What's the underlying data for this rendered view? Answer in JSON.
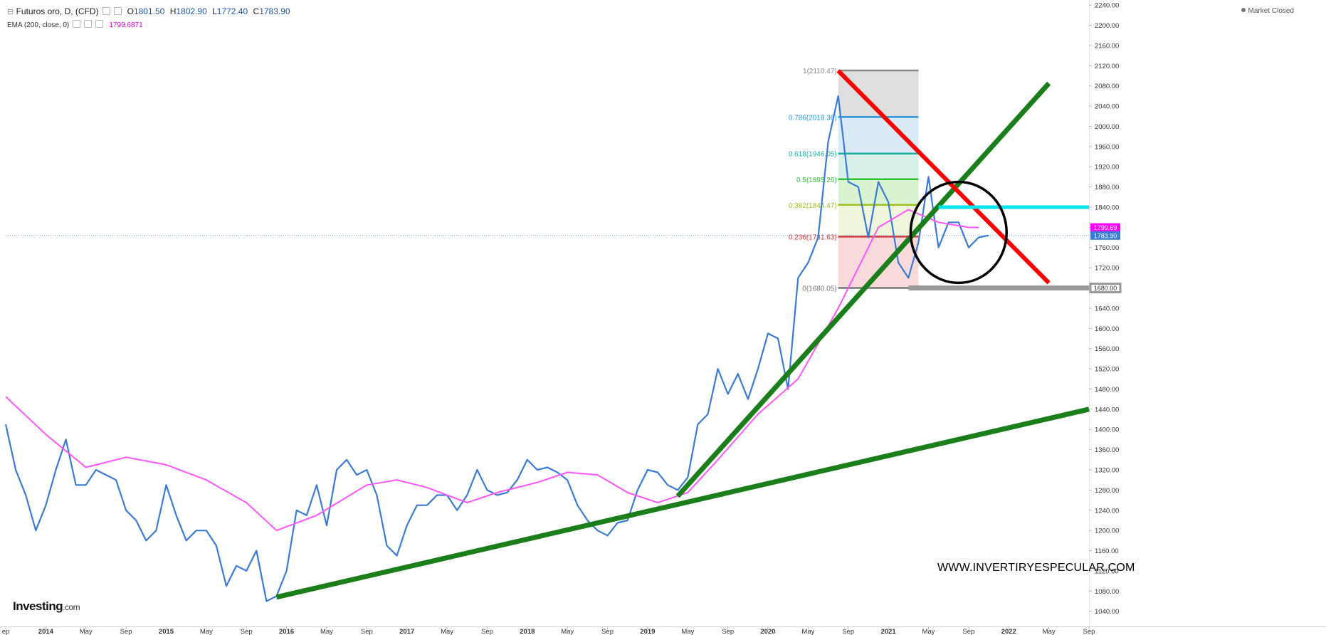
{
  "header": {
    "symbol_title": "Futuros oro, D, (CFD)",
    "open_label": "O",
    "open": "1801.50",
    "high_label": "H",
    "high": "1802.90",
    "low_label": "L",
    "low": "1772.40",
    "close_label": "C",
    "close": "1783.90",
    "indicator_label": "EMA (200, close, 0)",
    "indicator_value": "1799.6871"
  },
  "market_status": "Market Closed",
  "logo": {
    "name": "Investing",
    "suffix": ".com"
  },
  "watermark": "WWW.INVERTIRYESPECULAR.COM",
  "colors": {
    "price": "#3a7bd5",
    "ema": "#ff55ff",
    "trend_green": "#1a7f1a",
    "trend_red": "#ff0000",
    "resistance_cyan": "#00e5ee",
    "support_gray": "#999999",
    "circle": "#000000",
    "ema_badge": "#ff00ff",
    "price_badge": "#3a7bd5"
  },
  "chart_data": {
    "type": "line",
    "title": "Futuros oro, D, (CFD)",
    "x_range": [
      "2013-09",
      "2022-09"
    ],
    "ylim": [
      1010,
      2250
    ],
    "y_ticks": [
      1040,
      1080,
      1120,
      1160,
      1200,
      1240,
      1280,
      1320,
      1360,
      1400,
      1440,
      1480,
      1520,
      1560,
      1600,
      1640,
      1680,
      1720,
      1760,
      1800,
      1840,
      1880,
      1920,
      1960,
      2000,
      2040,
      2080,
      2120,
      2160,
      2200,
      2240
    ],
    "y_tick_labels": [
      "1040.00",
      "1080.00",
      "1120.00",
      "1160.00",
      "1200.00",
      "1240.00",
      "1280.00",
      "1320.00",
      "1360.00",
      "1400.00",
      "1440.00",
      "1480.00",
      "1520.00",
      "1560.00",
      "1600.00",
      "1640.00",
      "1680.00",
      "1720.00",
      "1760.00",
      "1800.00",
      "1840.00",
      "1880.00",
      "1920.00",
      "1960.00",
      "2000.00",
      "2040.00",
      "2080.00",
      "2120.00",
      "2160.00",
      "2200.00",
      "2240.00"
    ],
    "x_ticks": [
      {
        "date": "2013-09",
        "label": "ep"
      },
      {
        "date": "2014-01",
        "label": "2014"
      },
      {
        "date": "2014-05",
        "label": "May"
      },
      {
        "date": "2014-09",
        "label": "Sep"
      },
      {
        "date": "2015-01",
        "label": "2015"
      },
      {
        "date": "2015-05",
        "label": "May"
      },
      {
        "date": "2015-09",
        "label": "Sep"
      },
      {
        "date": "2016-01",
        "label": "2016"
      },
      {
        "date": "2016-05",
        "label": "May"
      },
      {
        "date": "2016-09",
        "label": "Sep"
      },
      {
        "date": "2017-01",
        "label": "2017"
      },
      {
        "date": "2017-05",
        "label": "May"
      },
      {
        "date": "2017-09",
        "label": "Sep"
      },
      {
        "date": "2018-01",
        "label": "2018"
      },
      {
        "date": "2018-05",
        "label": "May"
      },
      {
        "date": "2018-09",
        "label": "Sep"
      },
      {
        "date": "2019-01",
        "label": "2019"
      },
      {
        "date": "2019-05",
        "label": "May"
      },
      {
        "date": "2019-09",
        "label": "Sep"
      },
      {
        "date": "2020-01",
        "label": "2020"
      },
      {
        "date": "2020-05",
        "label": "May"
      },
      {
        "date": "2020-09",
        "label": "Sep"
      },
      {
        "date": "2021-01",
        "label": "2021"
      },
      {
        "date": "2021-05",
        "label": "May"
      },
      {
        "date": "2021-09",
        "label": "Sep"
      },
      {
        "date": "2022-01",
        "label": "2022"
      },
      {
        "date": "2022-05",
        "label": "May"
      },
      {
        "date": "2022-09",
        "label": "Sep"
      }
    ],
    "series": [
      {
        "name": "Futuros oro, D, (CFD)",
        "kind": "price",
        "points": [
          [
            "2013-09",
            1410
          ],
          [
            "2013-10",
            1320
          ],
          [
            "2013-11",
            1270
          ],
          [
            "2013-12",
            1200
          ],
          [
            "2014-01",
            1250
          ],
          [
            "2014-02",
            1320
          ],
          [
            "2014-03",
            1380
          ],
          [
            "2014-04",
            1290
          ],
          [
            "2014-05",
            1290
          ],
          [
            "2014-06",
            1320
          ],
          [
            "2014-07",
            1310
          ],
          [
            "2014-08",
            1300
          ],
          [
            "2014-09",
            1240
          ],
          [
            "2014-10",
            1220
          ],
          [
            "2014-11",
            1180
          ],
          [
            "2014-12",
            1200
          ],
          [
            "2015-01",
            1290
          ],
          [
            "2015-02",
            1230
          ],
          [
            "2015-03",
            1180
          ],
          [
            "2015-04",
            1200
          ],
          [
            "2015-05",
            1200
          ],
          [
            "2015-06",
            1170
          ],
          [
            "2015-07",
            1090
          ],
          [
            "2015-08",
            1130
          ],
          [
            "2015-09",
            1120
          ],
          [
            "2015-10",
            1160
          ],
          [
            "2015-11",
            1060
          ],
          [
            "2015-12",
            1070
          ],
          [
            "2016-01",
            1120
          ],
          [
            "2016-02",
            1240
          ],
          [
            "2016-03",
            1230
          ],
          [
            "2016-04",
            1290
          ],
          [
            "2016-05",
            1210
          ],
          [
            "2016-06",
            1320
          ],
          [
            "2016-07",
            1340
          ],
          [
            "2016-08",
            1310
          ],
          [
            "2016-09",
            1320
          ],
          [
            "2016-10",
            1270
          ],
          [
            "2016-11",
            1170
          ],
          [
            "2016-12",
            1150
          ],
          [
            "2017-01",
            1210
          ],
          [
            "2017-02",
            1250
          ],
          [
            "2017-03",
            1250
          ],
          [
            "2017-04",
            1270
          ],
          [
            "2017-05",
            1270
          ],
          [
            "2017-06",
            1240
          ],
          [
            "2017-07",
            1270
          ],
          [
            "2017-08",
            1320
          ],
          [
            "2017-09",
            1280
          ],
          [
            "2017-10",
            1270
          ],
          [
            "2017-11",
            1275
          ],
          [
            "2017-12",
            1300
          ],
          [
            "2018-01",
            1340
          ],
          [
            "2018-02",
            1320
          ],
          [
            "2018-03",
            1325
          ],
          [
            "2018-04",
            1315
          ],
          [
            "2018-05",
            1300
          ],
          [
            "2018-06",
            1250
          ],
          [
            "2018-07",
            1220
          ],
          [
            "2018-08",
            1200
          ],
          [
            "2018-09",
            1190
          ],
          [
            "2018-10",
            1215
          ],
          [
            "2018-11",
            1220
          ],
          [
            "2018-12",
            1280
          ],
          [
            "2019-01",
            1320
          ],
          [
            "2019-02",
            1315
          ],
          [
            "2019-03",
            1290
          ],
          [
            "2019-04",
            1280
          ],
          [
            "2019-05",
            1305
          ],
          [
            "2019-06",
            1410
          ],
          [
            "2019-07",
            1430
          ],
          [
            "2019-08",
            1520
          ],
          [
            "2019-09",
            1470
          ],
          [
            "2019-10",
            1510
          ],
          [
            "2019-11",
            1460
          ],
          [
            "2019-12",
            1520
          ],
          [
            "2020-01",
            1590
          ],
          [
            "2020-02",
            1580
          ],
          [
            "2020-03",
            1480
          ],
          [
            "2020-04",
            1700
          ],
          [
            "2020-05",
            1730
          ],
          [
            "2020-06",
            1780
          ],
          [
            "2020-07",
            1970
          ],
          [
            "2020-08",
            2060
          ],
          [
            "2020-09",
            1890
          ],
          [
            "2020-10",
            1880
          ],
          [
            "2020-11",
            1780
          ],
          [
            "2020-12",
            1890
          ],
          [
            "2021-01",
            1850
          ],
          [
            "2021-02",
            1730
          ],
          [
            "2021-03",
            1700
          ],
          [
            "2021-04",
            1770
          ],
          [
            "2021-05",
            1900
          ],
          [
            "2021-06",
            1760
          ],
          [
            "2021-07",
            1810
          ],
          [
            "2021-08",
            1810
          ],
          [
            "2021-09",
            1760
          ],
          [
            "2021-10",
            1780
          ],
          [
            "2021-11",
            1784
          ]
        ]
      },
      {
        "name": "EMA (200, close, 0)",
        "kind": "ema",
        "points": [
          [
            "2013-09",
            1465
          ],
          [
            "2014-01",
            1390
          ],
          [
            "2014-05",
            1325
          ],
          [
            "2014-09",
            1345
          ],
          [
            "2015-01",
            1330
          ],
          [
            "2015-05",
            1300
          ],
          [
            "2015-09",
            1255
          ],
          [
            "2015-12",
            1200
          ],
          [
            "2016-04",
            1230
          ],
          [
            "2016-09",
            1290
          ],
          [
            "2016-12",
            1300
          ],
          [
            "2017-03",
            1285
          ],
          [
            "2017-07",
            1255
          ],
          [
            "2017-10",
            1275
          ],
          [
            "2018-02",
            1295
          ],
          [
            "2018-05",
            1315
          ],
          [
            "2018-08",
            1310
          ],
          [
            "2018-11",
            1275
          ],
          [
            "2019-02",
            1255
          ],
          [
            "2019-05",
            1275
          ],
          [
            "2019-08",
            1340
          ],
          [
            "2019-12",
            1430
          ],
          [
            "2020-04",
            1500
          ],
          [
            "2020-08",
            1640
          ],
          [
            "2020-12",
            1800
          ],
          [
            "2021-03",
            1835
          ],
          [
            "2021-06",
            1810
          ],
          [
            "2021-09",
            1800
          ],
          [
            "2021-10",
            1799.69
          ]
        ]
      }
    ],
    "fibonacci": {
      "start": "2020-08",
      "end": "2021-04",
      "levels": [
        {
          "ratio": 1,
          "label": "1(2110.47)",
          "value": 2110.47,
          "color": "#888888",
          "fill": "#dcdcdc"
        },
        {
          "ratio": 0.786,
          "label": "0.786(2018.36)",
          "value": 2018.36,
          "color": "#2a95d8",
          "fill": "#d6e9f6"
        },
        {
          "ratio": 0.618,
          "label": "0.618(1946.05)",
          "value": 1946.05,
          "color": "#18b09c",
          "fill": "#d3efe8"
        },
        {
          "ratio": 0.5,
          "label": "0.5(1895.26)",
          "value": 1895.26,
          "color": "#2ec42e",
          "fill": "#d5f2cc"
        },
        {
          "ratio": 0.382,
          "label": "0.382(1844.47)",
          "value": 1844.47,
          "color": "#a0c020",
          "fill": "#eef5d8"
        },
        {
          "ratio": 0.236,
          "label": "0.236(1781.63)",
          "value": 1781.63,
          "color": "#d33a3a",
          "fill": "#f7d6d6"
        },
        {
          "ratio": 0,
          "label": "0(1680.05)",
          "value": 1680.05,
          "color": "#777777",
          "fill": null
        }
      ]
    },
    "annotations": [
      {
        "kind": "trendline",
        "color": "green",
        "from": [
          "2015-12",
          1068
        ],
        "to": [
          "2022-09",
          1440
        ]
      },
      {
        "kind": "trendline",
        "color": "green",
        "from": [
          "2019-04",
          1268
        ],
        "to": [
          "2022-05",
          2085
        ]
      },
      {
        "kind": "trendline",
        "color": "red",
        "from": [
          "2020-08",
          2110
        ],
        "to": [
          "2022-05",
          1690
        ]
      },
      {
        "kind": "hline",
        "color": "cyan",
        "value": 1840,
        "from": "2021-06"
      },
      {
        "kind": "hline",
        "color": "gray",
        "value": 1680,
        "from": "2021-03"
      },
      {
        "kind": "circle",
        "center": [
          "2021-08",
          1790
        ],
        "radius_y": 100
      }
    ],
    "price_badges": [
      {
        "label": "1799.69",
        "value": 1799.69,
        "series": "ema"
      },
      {
        "label": "1783.90",
        "value": 1783.9,
        "series": "price"
      },
      {
        "label": "1680.00",
        "value": 1680.0,
        "series": "support"
      }
    ],
    "current_price_line": 1783.9,
    "grid": false,
    "legend": "top-left"
  }
}
